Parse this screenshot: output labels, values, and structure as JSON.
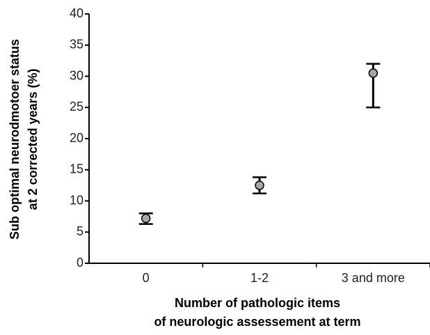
{
  "chart_data": {
    "type": "errorbar",
    "y_label": [
      "Sub optimal neurodmotoer status",
      "at 2 corrected years    (%)"
    ],
    "x_label": [
      "Number of pathologic items",
      "of neurologic assessement at term"
    ],
    "categories": [
      "0",
      "1-2",
      "3 and more"
    ],
    "values": [
      7.2,
      12.5,
      30.5
    ],
    "lower": [
      6.3,
      11.2,
      25.0
    ],
    "upper": [
      8.0,
      13.8,
      32.0
    ],
    "color": "#a6a6a6",
    "ylim": [
      0,
      40
    ],
    "yticks": [
      0,
      5,
      10,
      15,
      20,
      25,
      30,
      35,
      40
    ],
    "grid": false
  }
}
